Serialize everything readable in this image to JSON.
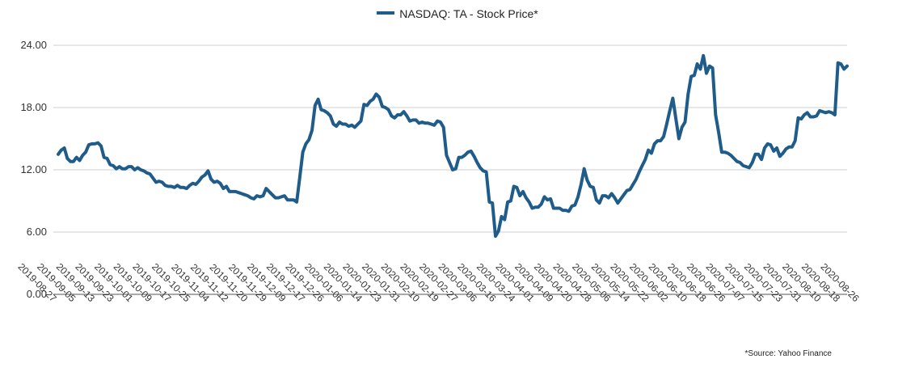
{
  "chart_data": {
    "type": "line",
    "series": [
      {
        "name": "NASDAQ: TA - Stock Price*",
        "color": "#1f5c8a",
        "values": [
          13.5,
          13.9,
          14.1,
          13.1,
          12.8,
          12.8,
          13.2,
          12.9,
          13.4,
          13.7,
          14.4,
          14.5,
          14.5,
          14.6,
          14.3,
          13.2,
          13.1,
          12.5,
          12.4,
          12.1,
          12.3,
          12.1,
          12.1,
          12.3,
          12.3,
          12.0,
          12.2,
          12.0,
          11.9,
          11.7,
          11.6,
          11.2,
          10.8,
          10.9,
          10.8,
          10.5,
          10.4,
          10.4,
          10.3,
          10.5,
          10.3,
          10.3,
          10.2,
          10.5,
          10.7,
          10.6,
          10.9,
          11.3,
          11.5,
          11.9,
          11.1,
          10.8,
          10.9,
          10.7,
          10.2,
          10.4,
          9.9,
          9.9,
          9.9,
          9.8,
          9.7,
          9.6,
          9.5,
          9.3,
          9.2,
          9.5,
          9.4,
          9.5,
          10.2,
          9.9,
          9.6,
          9.3,
          9.3,
          9.4,
          9.5,
          9.1,
          9.1,
          9.1,
          8.9,
          11.3,
          13.7,
          14.5,
          14.9,
          15.8,
          18.2,
          18.8,
          17.8,
          17.7,
          17.5,
          17.2,
          16.4,
          16.2,
          16.6,
          16.4,
          16.4,
          16.2,
          16.3,
          16.1,
          16.4,
          16.7,
          18.3,
          18.2,
          18.6,
          18.8,
          19.3,
          19.0,
          18.1,
          18.0,
          17.8,
          17.2,
          17.0,
          17.3,
          17.3,
          17.6,
          17.2,
          16.7,
          16.8,
          16.8,
          16.5,
          16.6,
          16.5,
          16.5,
          16.4,
          16.3,
          16.7,
          16.6,
          16.1,
          13.4,
          12.7,
          12.0,
          12.1,
          13.2,
          13.2,
          13.4,
          13.7,
          13.8,
          13.3,
          12.7,
          12.2,
          11.9,
          11.8,
          8.9,
          8.8,
          5.6,
          6.1,
          7.5,
          7.2,
          8.9,
          9.0,
          10.4,
          10.3,
          9.5,
          9.9,
          9.3,
          8.9,
          8.3,
          8.4,
          8.4,
          8.7,
          9.4,
          9.1,
          9.2,
          8.3,
          8.3,
          8.3,
          8.1,
          8.1,
          8.0,
          8.5,
          8.6,
          9.4,
          10.6,
          12.1,
          11.0,
          10.4,
          10.3,
          9.1,
          8.8,
          9.5,
          9.5,
          9.3,
          9.7,
          9.3,
          8.8,
          9.2,
          9.6,
          10.0,
          10.1,
          10.6,
          11.1,
          11.8,
          12.4,
          13.0,
          13.9,
          13.6,
          14.5,
          14.8,
          14.8,
          15.2,
          16.4,
          17.7,
          18.9,
          16.9,
          15.0,
          16.1,
          16.6,
          19.3,
          21.0,
          21.1,
          22.2,
          21.7,
          23.0,
          21.3,
          22.0,
          21.8,
          17.3,
          15.6,
          13.7,
          13.7,
          13.6,
          13.4,
          13.1,
          12.8,
          12.7,
          12.4,
          12.3,
          12.2,
          12.7,
          13.5,
          13.5,
          13.0,
          14.1,
          14.5,
          14.4,
          13.8,
          14.1,
          13.3,
          13.6,
          14.0,
          14.2,
          14.2,
          14.8,
          17.0,
          16.9,
          17.3,
          17.5,
          17.1,
          17.1,
          17.2,
          17.7,
          17.6,
          17.5,
          17.6,
          17.5,
          17.3,
          22.3,
          22.2,
          21.7,
          22.0
        ]
      }
    ],
    "x_tick_labels": [
      "2019-08-27",
      "2019-09-05",
      "2019-09-13",
      "2019-09-23",
      "2019-10-01",
      "2019-10-09",
      "2019-10-17",
      "2019-10-25",
      "2019-11-04",
      "2019-11-12",
      "2019-11-20",
      "2019-11-29",
      "2019-12-09",
      "2019-12-17",
      "2019-12-26",
      "2020-01-06",
      "2020-01-14",
      "2020-01-23",
      "2020-01-31",
      "2020-02-10",
      "2020-02-19",
      "2020-02-27",
      "2020-03-06",
      "2020-03-16",
      "2020-03-24",
      "2020-04-01",
      "2020-04-09",
      "2020-04-20",
      "2020-04-28",
      "2020-05-06",
      "2020-05-14",
      "2020-05-22",
      "2020-06-02",
      "2020-06-10",
      "2020-06-18",
      "2020-06-26",
      "2020-07-07",
      "2020-07-15",
      "2020-07-23",
      "2020-07-31",
      "2020-08-10",
      "2020-08-18",
      "2020-08-26"
    ],
    "y_tick_labels": [
      "0.00",
      "6.00",
      "12.00",
      "18.00",
      "24.00"
    ],
    "ylim": [
      0,
      24
    ],
    "grid": true,
    "legend_position": "top-center"
  },
  "footnote": "*Source: Yahoo Finance"
}
